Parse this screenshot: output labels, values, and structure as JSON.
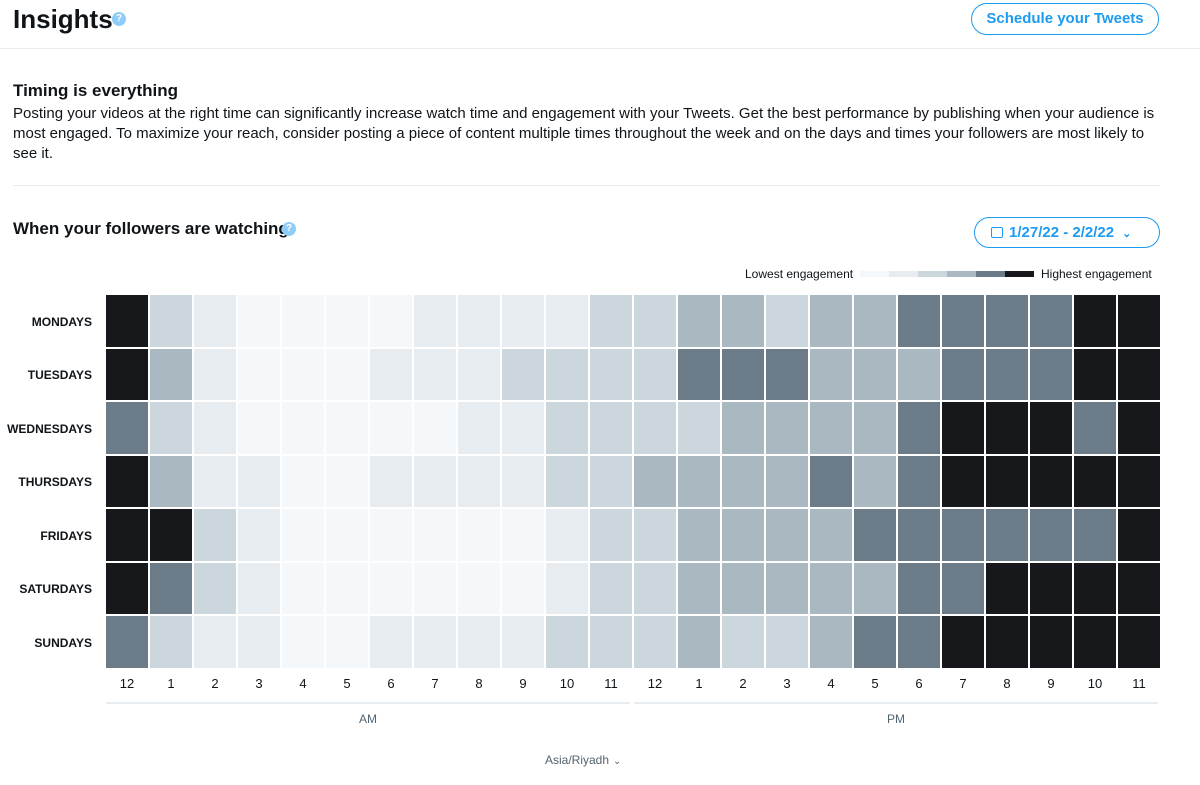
{
  "header": {
    "title": "Insights",
    "help_glyph": "?",
    "schedule_label": "Schedule your Tweets"
  },
  "intro": {
    "title": "Timing is everything",
    "body": "Posting your videos at the right time can significantly increase watch time and engagement with your Tweets. Get the best performance by publishing when your audience is most engaged. To maximize your reach, consider posting a piece of content multiple times throughout the week and on the days and times your followers are most likely to see it."
  },
  "chart_section": {
    "title": "When your followers are watching",
    "date_range": "1/27/22 - 2/2/22",
    "calendar_icon": "calendar-icon",
    "chevron_icon": "chevron-down-icon",
    "timezone": "Asia/Riyadh"
  },
  "chart_data": {
    "type": "heatmap",
    "title": "When your followers are watching",
    "legend": {
      "low": "Lowest engagement",
      "high": "Highest engagement",
      "levels": 6
    },
    "scale_colors": [
      "#f5f8fa",
      "#e6ecf0",
      "#ccd6dd",
      "#aab8c2",
      "#6b7b88",
      "#17181c"
    ],
    "rows": [
      "MONDAYS",
      "TUESDAYS",
      "WEDNESDAYS",
      "THURSDAYS",
      "FRIDAYS",
      "SATURDAYS",
      "SUNDAYS"
    ],
    "columns": [
      "12",
      "1",
      "2",
      "3",
      "4",
      "5",
      "6",
      "7",
      "8",
      "9",
      "10",
      "11",
      "12",
      "1",
      "2",
      "3",
      "4",
      "5",
      "6",
      "7",
      "8",
      "9",
      "10",
      "11"
    ],
    "periods": [
      {
        "label": "AM",
        "span": 12
      },
      {
        "label": "PM",
        "span": 12
      }
    ],
    "values": [
      [
        5,
        2,
        1,
        0,
        0,
        0,
        0,
        1,
        1,
        1,
        1,
        2,
        2,
        3,
        3,
        2,
        3,
        3,
        4,
        4,
        4,
        4,
        5,
        5
      ],
      [
        5,
        3,
        1,
        0,
        0,
        0,
        1,
        1,
        1,
        2,
        2,
        2,
        2,
        4,
        4,
        4,
        3,
        3,
        3,
        4,
        4,
        4,
        5,
        5
      ],
      [
        4,
        2,
        1,
        0,
        0,
        0,
        0,
        0,
        1,
        1,
        2,
        2,
        2,
        2,
        3,
        3,
        3,
        3,
        4,
        5,
        5,
        5,
        4,
        5
      ],
      [
        5,
        3,
        1,
        1,
        0,
        0,
        1,
        1,
        1,
        1,
        2,
        2,
        3,
        3,
        3,
        3,
        4,
        3,
        4,
        5,
        5,
        5,
        5,
        5
      ],
      [
        5,
        5,
        2,
        1,
        0,
        0,
        0,
        0,
        0,
        0,
        1,
        2,
        2,
        3,
        3,
        3,
        3,
        4,
        4,
        4,
        4,
        4,
        4,
        5
      ],
      [
        5,
        4,
        2,
        1,
        0,
        0,
        0,
        0,
        0,
        0,
        1,
        2,
        2,
        3,
        3,
        3,
        3,
        3,
        4,
        4,
        5,
        5,
        5,
        5
      ],
      [
        4,
        2,
        1,
        1,
        0,
        0,
        1,
        1,
        1,
        1,
        2,
        2,
        2,
        3,
        2,
        2,
        3,
        4,
        4,
        5,
        5,
        5,
        5,
        5
      ]
    ]
  }
}
